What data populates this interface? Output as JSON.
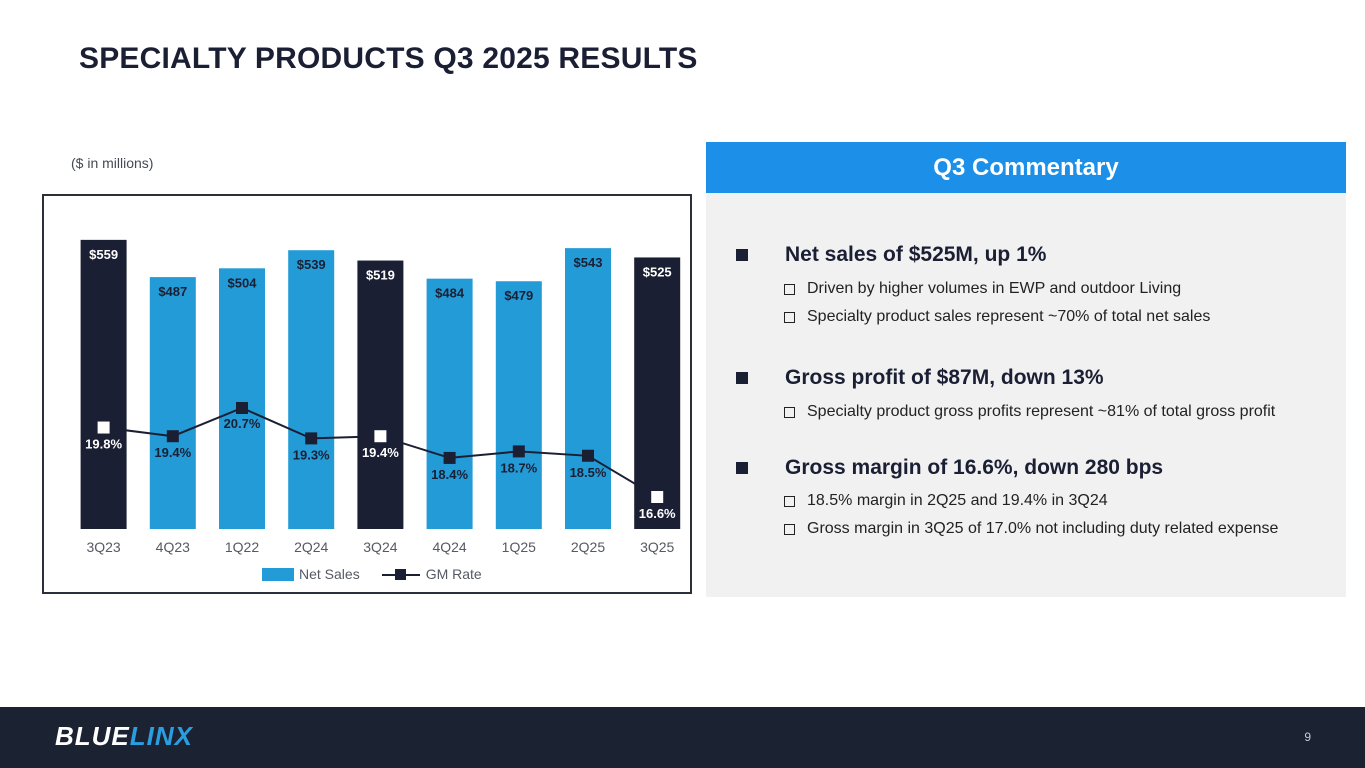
{
  "page": {
    "title": "SPECIALTY PRODUCTS Q3 2025 RESULTS",
    "subtitle": "($ in millions)",
    "page_number": "9",
    "logo": {
      "part1": "BLUE",
      "part2": "LINX"
    }
  },
  "colors": {
    "net_sales_bar": "#239bd7",
    "highlight_bar": "#1b1f33",
    "gm_line": "#1b1f33",
    "header_blue": "#1c8fe8",
    "footer_bg": "#1b2333"
  },
  "chart_data": {
    "type": "bar",
    "categories": [
      "3Q23",
      "4Q23",
      "1Q22",
      "2Q24",
      "3Q24",
      "4Q24",
      "1Q25",
      "2Q25",
      "3Q25"
    ],
    "series": [
      {
        "name": "Net Sales",
        "type": "bar",
        "values": [
          559,
          487,
          504,
          539,
          519,
          484,
          479,
          543,
          525
        ],
        "labels": [
          "$559",
          "$487",
          "$504",
          "$539",
          "$519",
          "$484",
          "$479",
          "$543",
          "$525"
        ],
        "highlighted": [
          true,
          false,
          false,
          false,
          true,
          false,
          false,
          false,
          true
        ]
      },
      {
        "name": "GM Rate",
        "type": "line",
        "values": [
          19.8,
          19.4,
          20.7,
          19.3,
          19.4,
          18.4,
          18.7,
          18.5,
          16.6
        ],
        "labels": [
          "19.8%",
          "19.4%",
          "20.7%",
          "19.3%",
          "19.4%",
          "18.4%",
          "18.7%",
          "18.5%",
          "16.6%"
        ]
      }
    ],
    "legend": [
      "Net Sales",
      "GM Rate"
    ],
    "legend_position": "bottom",
    "ylim": [
      0,
      580
    ],
    "title": "",
    "xlabel": "",
    "ylabel": ""
  },
  "commentary": {
    "header": "Q3 Commentary",
    "items": [
      {
        "main": "Net sales of $525M, up 1%",
        "subs": [
          "Driven by higher volumes in EWP and outdoor Living",
          "Specialty product sales represent ~70% of total net sales"
        ]
      },
      {
        "main": "Gross profit of $87M, down 13%",
        "subs": [
          "Specialty product gross profits represent ~81% of total gross profit"
        ]
      },
      {
        "main": "Gross margin of 16.6%, down 280 bps",
        "subs": [
          "18.5% margin in 2Q25 and 19.4% in 3Q24",
          "Gross margin in 3Q25 of 17.0% not including duty related expense"
        ]
      }
    ]
  }
}
